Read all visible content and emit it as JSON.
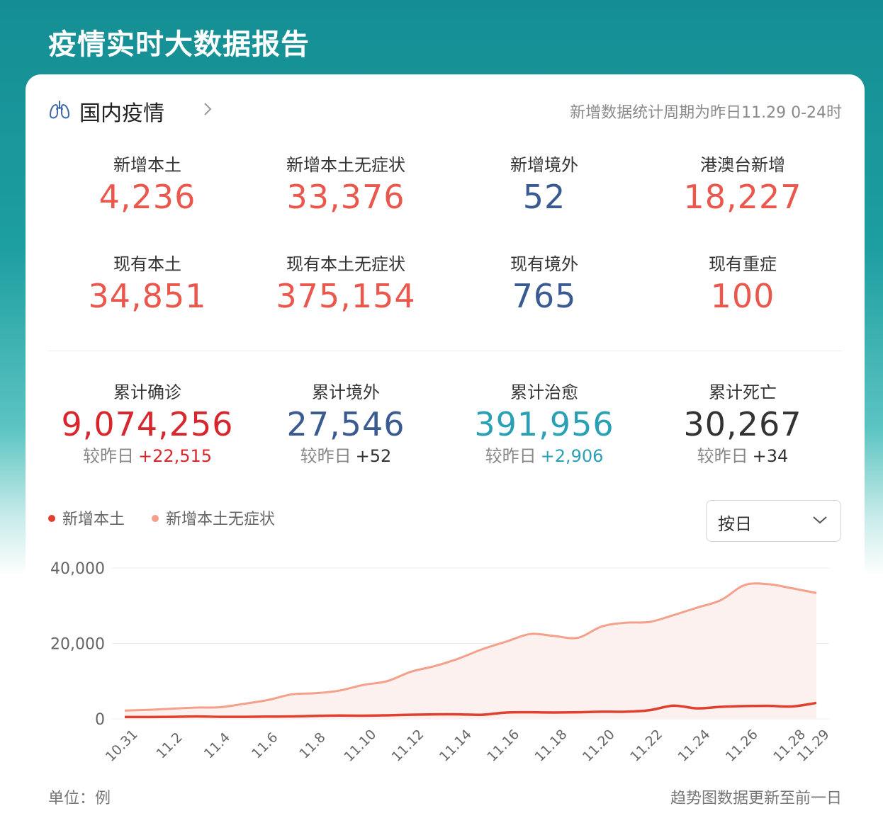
{
  "page": {
    "title": "疫情实时大数据报告"
  },
  "header": {
    "icon": "lung-icon",
    "section_title": "国内疫情",
    "period_note": "新增数据统计周期为昨日11.29 0-24时"
  },
  "stats_new": [
    {
      "label": "新增本土",
      "value": "4,236",
      "color": "#e9574d"
    },
    {
      "label": "新增本土无症状",
      "value": "33,376",
      "color": "#e9574d"
    },
    {
      "label": "新增境外",
      "value": "52",
      "color": "#3a5a92"
    },
    {
      "label": "港澳台新增",
      "value": "18,227",
      "color": "#e9574d"
    }
  ],
  "stats_current": [
    {
      "label": "现有本土",
      "value": "34,851",
      "color": "#e9574d"
    },
    {
      "label": "现有本土无症状",
      "value": "375,154",
      "color": "#e9574d"
    },
    {
      "label": "现有境外",
      "value": "765",
      "color": "#3a5a92"
    },
    {
      "label": "现有重症",
      "value": "100",
      "color": "#e9574d"
    }
  ],
  "stats_cumulative": [
    {
      "label": "累计确诊",
      "value": "9,074,256",
      "delta_label": "较昨日",
      "delta": "+22,515",
      "color": "#d8262d"
    },
    {
      "label": "累计境外",
      "value": "27,546",
      "delta_label": "较昨日",
      "delta": "+52",
      "color": "#3a5a92"
    },
    {
      "label": "累计治愈",
      "value": "391,956",
      "delta_label": "较昨日",
      "delta": "+2,906",
      "color": "#2aa0b6"
    },
    {
      "label": "累计死亡",
      "value": "30,267",
      "delta_label": "较昨日",
      "delta": "+34",
      "color": "#333333"
    }
  ],
  "chart_controls": {
    "legend": [
      {
        "name": "新增本土",
        "color": "#e0402e"
      },
      {
        "name": "新增本土无症状",
        "color": "#f4a08a"
      }
    ],
    "period_select": "按日"
  },
  "chart_data": {
    "type": "line",
    "x": [
      "10.31",
      "11.1",
      "11.2",
      "11.3",
      "11.4",
      "11.5",
      "11.6",
      "11.7",
      "11.8",
      "11.9",
      "11.10",
      "11.11",
      "11.12",
      "11.13",
      "11.14",
      "11.15",
      "11.16",
      "11.17",
      "11.18",
      "11.19",
      "11.20",
      "11.21",
      "11.22",
      "11.23",
      "11.24",
      "11.25",
      "11.26",
      "11.27",
      "11.28",
      "11.29"
    ],
    "xticks": [
      "10.31",
      "11.2",
      "11.4",
      "11.6",
      "11.8",
      "11.10",
      "11.12",
      "11.14",
      "11.16",
      "11.18",
      "11.20",
      "11.22",
      "11.24",
      "11.26",
      "11.28",
      "11.29"
    ],
    "series": [
      {
        "name": "新增本土",
        "color": "#e0402e",
        "fill": false,
        "values": [
          500,
          500,
          550,
          650,
          550,
          550,
          600,
          650,
          800,
          900,
          850,
          950,
          1100,
          1200,
          1200,
          1100,
          1700,
          1750,
          1700,
          1750,
          1900,
          1900,
          2300,
          3500,
          2800,
          3200,
          3400,
          3450,
          3300,
          4236
        ]
      },
      {
        "name": "新增本土无症状",
        "color": "#f4a08a",
        "fill": true,
        "values": [
          2200,
          2400,
          2700,
          3000,
          3100,
          4000,
          5000,
          6500,
          6800,
          7500,
          9000,
          10000,
          12500,
          14000,
          16000,
          18500,
          20500,
          22500,
          22000,
          21500,
          24500,
          25500,
          25700,
          27500,
          29500,
          31500,
          35500,
          35700,
          34600,
          33376
        ]
      }
    ],
    "ylim": [
      0,
      40000
    ],
    "yticks": [
      {
        "value": 0,
        "label": "0"
      },
      {
        "value": 20000,
        "label": "20,000"
      },
      {
        "value": 40000,
        "label": "40,000"
      }
    ],
    "grid": true,
    "legend": "top-left"
  },
  "footer": {
    "unit": "单位：例",
    "update_note": "趋势图数据更新至前一日"
  }
}
